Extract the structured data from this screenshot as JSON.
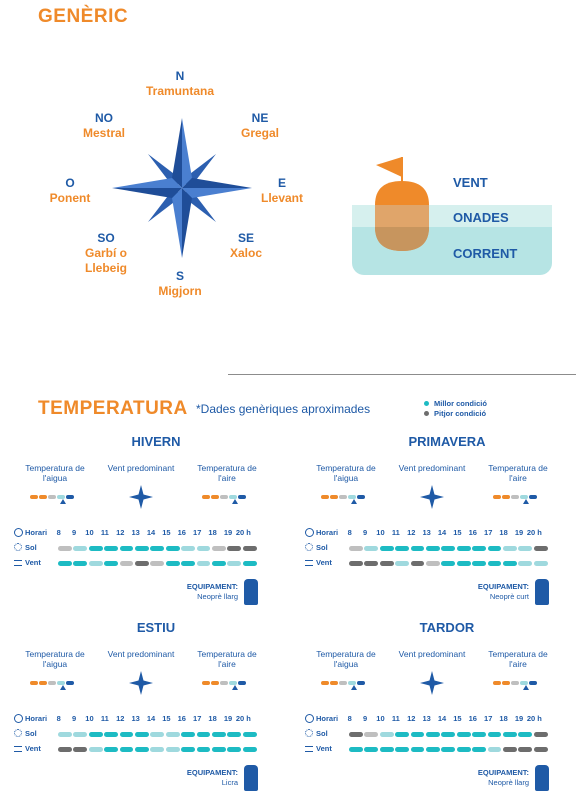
{
  "generic": {
    "title": "GENÈRIC",
    "directions": {
      "n": {
        "code": "N",
        "name": "Tramuntana"
      },
      "ne": {
        "code": "NE",
        "name": "Gregal"
      },
      "e": {
        "code": "E",
        "name": "Llevant"
      },
      "se": {
        "code": "SE",
        "name": "Xaloc"
      },
      "s": {
        "code": "S",
        "name": "Migjorn"
      },
      "so": {
        "code": "SO",
        "name": "Garbí o Llebeig"
      },
      "o": {
        "code": "O",
        "name": "Ponent"
      },
      "no": {
        "code": "NO",
        "name": "Mestral"
      }
    },
    "layers": {
      "wind": "VENT",
      "waves": "ONADES",
      "current": "CORRENT"
    }
  },
  "temperature": {
    "title": "TEMPERATURA",
    "note": "*Dades genèriques aproximades",
    "legend": {
      "best": "Millor condició",
      "worst": "Pitjor condició"
    },
    "col_labels": {
      "water": "Temperatura de l'aigua",
      "wind": "Vent predominant",
      "air": "Temperatura de l'aire"
    },
    "row_labels": {
      "hours": "Horari",
      "sun": "Sol",
      "wind": "Vent"
    },
    "hours": [
      "8",
      "9",
      "10",
      "11",
      "12",
      "13",
      "14",
      "15",
      "16",
      "17",
      "18",
      "19",
      "20 h"
    ],
    "equipment_label": "EQUIPAMENT:",
    "colors": {
      "orange": "#ef8a2a",
      "teal": "#1dbbc3",
      "lightblue": "#9fd9de",
      "gray": "#bfbfbf",
      "darkgray": "#6d6d6d",
      "blue": "#1f5aa6"
    },
    "seasons": [
      {
        "name": "HIVERN",
        "equipment": "Neoprè llarg",
        "sun": [
          "g",
          "l",
          "t",
          "t",
          "t",
          "t",
          "t",
          "t",
          "l",
          "l",
          "g",
          "d",
          "d"
        ],
        "wind": [
          "t",
          "t",
          "l",
          "t",
          "g",
          "d",
          "g",
          "t",
          "t",
          "l",
          "t",
          "l",
          "t"
        ]
      },
      {
        "name": "PRIMAVERA",
        "equipment": "Neoprè curt",
        "sun": [
          "g",
          "l",
          "t",
          "t",
          "t",
          "t",
          "t",
          "t",
          "t",
          "t",
          "l",
          "l",
          "d"
        ],
        "wind": [
          "d",
          "d",
          "d",
          "l",
          "d",
          "g",
          "t",
          "t",
          "t",
          "t",
          "t",
          "l",
          "l"
        ]
      },
      {
        "name": "ESTIU",
        "equipment": "Licra",
        "sun": [
          "l",
          "l",
          "t",
          "t",
          "t",
          "t",
          "l",
          "l",
          "t",
          "t",
          "t",
          "t",
          "t"
        ],
        "wind": [
          "d",
          "d",
          "l",
          "t",
          "t",
          "t",
          "l",
          "l",
          "t",
          "t",
          "t",
          "t",
          "t"
        ]
      },
      {
        "name": "TARDOR",
        "equipment": "Neoprè llarg",
        "sun": [
          "d",
          "g",
          "l",
          "t",
          "t",
          "t",
          "t",
          "t",
          "t",
          "t",
          "t",
          "t",
          "d"
        ],
        "wind": [
          "t",
          "t",
          "t",
          "t",
          "t",
          "t",
          "t",
          "t",
          "t",
          "l",
          "d",
          "d",
          "d"
        ]
      }
    ]
  }
}
